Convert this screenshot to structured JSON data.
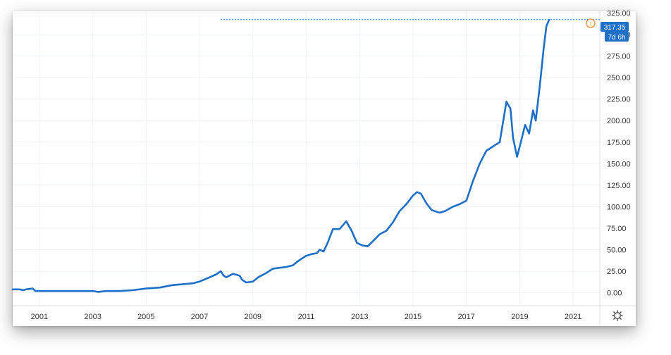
{
  "chart_data": {
    "type": "line",
    "title": "",
    "xlabel": "",
    "ylabel": "",
    "x_ticks": [
      "2001",
      "2003",
      "2005",
      "2007",
      "2009",
      "2011",
      "2013",
      "2015",
      "2017",
      "2019",
      "2021"
    ],
    "y_ticks": [
      "0.00",
      "25.00",
      "50.00",
      "75.00",
      "100.00",
      "125.00",
      "150.00",
      "175.00",
      "200.00",
      "225.00",
      "250.00",
      "275.00",
      "300.00",
      "325.00"
    ],
    "xlim": [
      2000.0,
      2022.0
    ],
    "ylim": [
      -15,
      327
    ],
    "grid": true,
    "last_price_label": "317.35",
    "countdown_label": "7d 6h",
    "series": [
      {
        "color": "#1e6fc7",
        "x": [
          2000.0,
          2000.25,
          2000.4,
          2000.5,
          2000.75,
          2000.85,
          2001.0,
          2002.0,
          2003.0,
          2003.2,
          2003.5,
          2004.0,
          2004.5,
          2005.0,
          2005.5,
          2006.0,
          2006.4,
          2006.75,
          2007.0,
          2007.3,
          2007.6,
          2007.8,
          2007.9,
          2008.0,
          2008.25,
          2008.5,
          2008.6,
          2008.75,
          2009.0,
          2009.2,
          2009.5,
          2009.75,
          2010.0,
          2010.25,
          2010.5,
          2010.75,
          2011.0,
          2011.2,
          2011.4,
          2011.5,
          2011.65,
          2011.8,
          2012.0,
          2012.25,
          2012.5,
          2012.7,
          2012.9,
          2013.1,
          2013.3,
          2013.5,
          2013.75,
          2014.0,
          2014.25,
          2014.5,
          2014.75,
          2015.0,
          2015.15,
          2015.3,
          2015.5,
          2015.7,
          2016.0,
          2016.2,
          2016.5,
          2016.75,
          2017.0,
          2017.25,
          2017.5,
          2017.75,
          2018.0,
          2018.25,
          2018.5,
          2018.65,
          2018.75,
          2018.9,
          2019.0,
          2019.2,
          2019.35,
          2019.5,
          2019.6,
          2019.75,
          2019.9,
          2020.0,
          2020.1
        ],
        "y": [
          4,
          4,
          3,
          4,
          5,
          2,
          2,
          2,
          2,
          1,
          2,
          2,
          3,
          5,
          6,
          9,
          10,
          11,
          13,
          17,
          21,
          25,
          20,
          18,
          22,
          20,
          15,
          12,
          13,
          18,
          23,
          28,
          29,
          30,
          32,
          38,
          43,
          45,
          46,
          50,
          48,
          58,
          74,
          74,
          83,
          72,
          58,
          55,
          54,
          60,
          68,
          72,
          82,
          95,
          103,
          113,
          117,
          115,
          104,
          96,
          93,
          95,
          100,
          103,
          107,
          130,
          150,
          165,
          170,
          175,
          222,
          214,
          180,
          158,
          170,
          195,
          185,
          212,
          200,
          240,
          285,
          310,
          317
        ]
      }
    ]
  }
}
